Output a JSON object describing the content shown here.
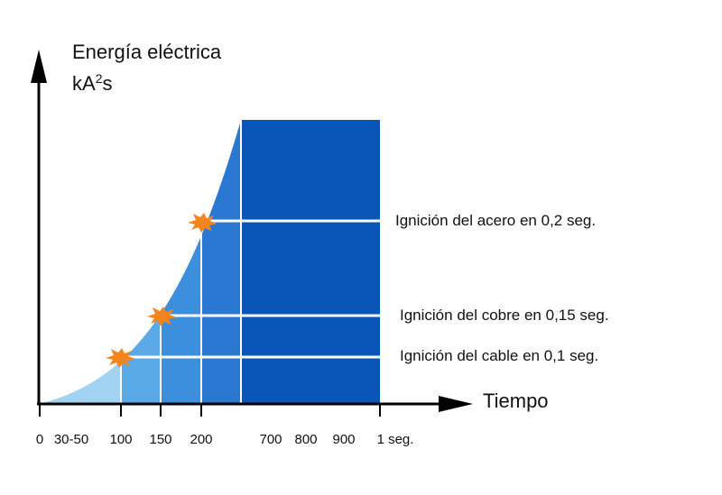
{
  "y_axis": {
    "title": "Energía eléctrica",
    "unit_base": "kA",
    "unit_sup": "2",
    "unit_tail": "s"
  },
  "x_axis": {
    "title": "Tiempo",
    "ticks": [
      "0",
      "30-50",
      "100",
      "150",
      "200",
      "700",
      "800",
      "900",
      "1 seg."
    ]
  },
  "levels": [
    {
      "label": "Ignición del acero en 0,2 seg."
    },
    {
      "label": "Ignición del cobre en 0,15 seg."
    },
    {
      "label": "Ignición del cable en 0,1 seg."
    }
  ],
  "colors": {
    "band1": "#a3d3f3",
    "band2": "#5aaae8",
    "band3": "#3b8fdc",
    "band4": "#2a78d2",
    "band5": "#0a55b8",
    "spark": "#f2861c",
    "axis": "#000000",
    "grid": "#ffffff"
  },
  "icons": {
    "spark": "spark-burst-icon"
  }
}
